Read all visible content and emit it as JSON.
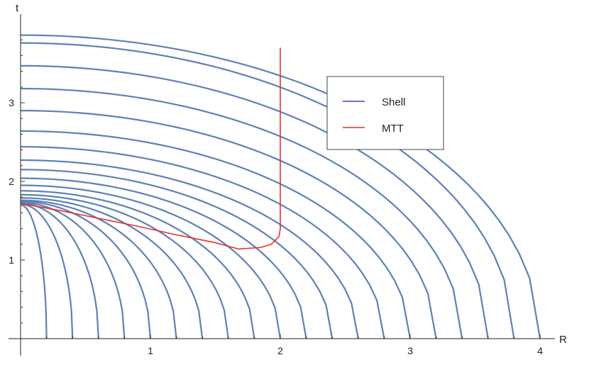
{
  "chart_data": {
    "type": "line",
    "title": "",
    "xlabel": "R",
    "ylabel": "t",
    "xlim": [
      0,
      4.2
    ],
    "ylim": [
      0,
      3.9
    ],
    "x_ticks": [
      {
        "value": 1,
        "label": "1"
      },
      {
        "value": 2,
        "label": "2"
      },
      {
        "value": 3,
        "label": "3"
      },
      {
        "value": 4,
        "label": "4"
      }
    ],
    "y_ticks": [
      {
        "value": 1,
        "label": "1"
      },
      {
        "value": 2,
        "label": "2"
      },
      {
        "value": 3,
        "label": "3"
      }
    ],
    "grid": false,
    "legend": {
      "position": "top-right",
      "entries": [
        {
          "label": "Shell",
          "color": "#3b3bc8"
        },
        {
          "label": "MTT",
          "color": "#e8312b"
        }
      ]
    },
    "shells": {
      "color": "#5e81b5",
      "curves": [
        {
          "r0": 0.2,
          "t0": 1.7
        },
        {
          "r0": 0.4,
          "t0": 1.71
        },
        {
          "r0": 0.6,
          "t0": 1.72
        },
        {
          "r0": 0.8,
          "t0": 1.73
        },
        {
          "r0": 1.0,
          "t0": 1.745
        },
        {
          "r0": 1.2,
          "t0": 1.76
        },
        {
          "r0": 1.4,
          "t0": 1.79
        },
        {
          "r0": 1.6,
          "t0": 1.83
        },
        {
          "r0": 1.8,
          "t0": 1.88
        },
        {
          "r0": 2.0,
          "t0": 1.95
        },
        {
          "r0": 2.2,
          "t0": 2.04
        },
        {
          "r0": 2.4,
          "t0": 2.15
        },
        {
          "r0": 2.6,
          "t0": 2.27
        },
        {
          "r0": 2.8,
          "t0": 2.44
        },
        {
          "r0": 3.0,
          "t0": 2.64
        },
        {
          "r0": 3.2,
          "t0": 2.9
        },
        {
          "r0": 3.4,
          "t0": 3.18
        },
        {
          "r0": 3.6,
          "t0": 3.47
        },
        {
          "r0": 3.8,
          "t0": 3.76
        },
        {
          "r0": 4.0,
          "t0": 3.86
        }
      ]
    },
    "mtt": {
      "color": "#e8312b",
      "points": [
        [
          0.0,
          1.72
        ],
        [
          0.3,
          1.63
        ],
        [
          0.6,
          1.53
        ],
        [
          0.9,
          1.43
        ],
        [
          1.2,
          1.32
        ],
        [
          1.5,
          1.22
        ],
        [
          1.68,
          1.14
        ],
        [
          1.85,
          1.16
        ],
        [
          1.93,
          1.2
        ],
        [
          1.99,
          1.3
        ],
        [
          2.0,
          1.4
        ],
        [
          2.0,
          2.0
        ],
        [
          2.0,
          3.0
        ],
        [
          2.0,
          3.7
        ]
      ]
    }
  }
}
